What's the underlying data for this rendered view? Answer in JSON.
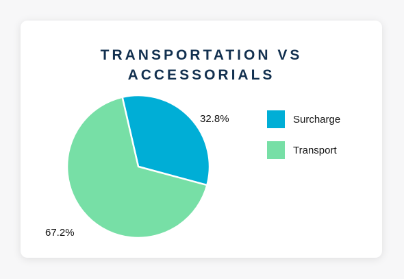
{
  "chart_data": {
    "type": "pie",
    "title_lines": [
      "TRANSPORTATION VS",
      "ACCESSORIALS"
    ],
    "slices": [
      {
        "name": "Surcharge",
        "value": 32.8,
        "label": "32.8%",
        "color": "#00aed6"
      },
      {
        "name": "Transport",
        "value": 67.2,
        "label": "67.2%",
        "color": "#77dfa6"
      }
    ],
    "legend": {
      "position": "right",
      "items": [
        "Surcharge",
        "Transport"
      ]
    }
  }
}
